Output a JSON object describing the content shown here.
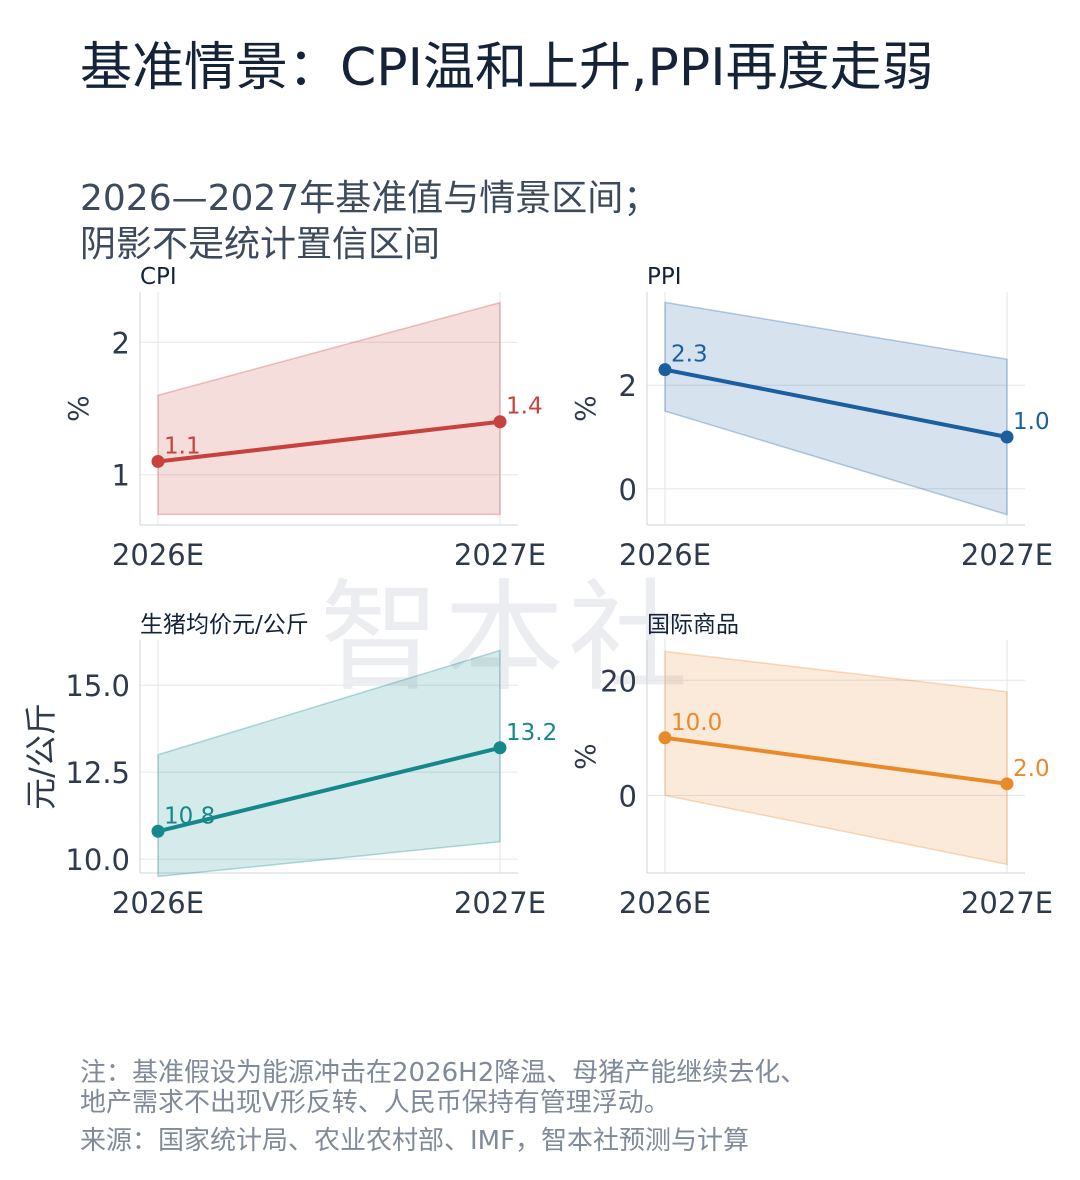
{
  "title": "基准情景：CPI温和上升,PPI再度走弱",
  "subtitle_line1": "2026—2027年基准值与情景区间；",
  "subtitle_line2": "阴影不是统计置信区间",
  "watermark": "智本社",
  "note_line1": "注：基准假设为能源冲击在2026H2降温、母猪产能继续去化、",
  "note_line2": "地产需求不出现V形反转、人民币保持有管理浮动。",
  "source": "来源：国家统计局、农业农村部、IMF，智本社预测与计算",
  "chart_data": [
    {
      "type": "line",
      "title": "CPI",
      "ylabel": "%",
      "x": [
        "2026E",
        "2027E"
      ],
      "values": [
        1.1,
        1.4
      ],
      "labels": [
        "1.1",
        "1.4"
      ],
      "band_low": [
        0.7,
        0.7
      ],
      "band_high": [
        1.6,
        2.3
      ],
      "ylim": [
        0.62,
        2.38
      ],
      "yticks": [
        1,
        2
      ],
      "ytick_labels": [
        "1",
        "2"
      ],
      "color": "#c7413d",
      "grid": true
    },
    {
      "type": "line",
      "title": "PPI",
      "ylabel": "%",
      "x": [
        "2026E",
        "2027E"
      ],
      "values": [
        2.3,
        1.0
      ],
      "labels": [
        "2.3",
        "1.0"
      ],
      "band_low": [
        1.5,
        -0.5
      ],
      "band_high": [
        3.6,
        2.5
      ],
      "ylim": [
        -0.7,
        3.8
      ],
      "yticks": [
        0,
        2
      ],
      "ytick_labels": [
        "0",
        "2"
      ],
      "color": "#1a5fa0",
      "grid": true
    },
    {
      "type": "line",
      "title": "生猪均价元/公斤",
      "ylabel": "元/公斤",
      "x": [
        "2026E",
        "2027E"
      ],
      "values": [
        10.8,
        13.2
      ],
      "labels": [
        "10.8",
        "13.2"
      ],
      "band_low": [
        9.5,
        10.5
      ],
      "band_high": [
        13.0,
        16.0
      ],
      "ylim": [
        9.6,
        16.3
      ],
      "yticks": [
        10,
        12.5,
        15
      ],
      "ytick_labels": [
        "10.0",
        "12.5",
        "15.0"
      ],
      "color": "#14888a",
      "grid": true
    },
    {
      "type": "line",
      "title": "国际商品",
      "ylabel": "%",
      "x": [
        "2026E",
        "2027E"
      ],
      "values": [
        10.0,
        2.0
      ],
      "labels": [
        "10.0",
        "2.0"
      ],
      "band_low": [
        0,
        -12
      ],
      "band_high": [
        25,
        18
      ],
      "ylim": [
        -13.5,
        27
      ],
      "yticks": [
        0,
        20
      ],
      "ytick_labels": [
        "0",
        "20"
      ],
      "color": "#e88a2a",
      "grid": true
    }
  ]
}
